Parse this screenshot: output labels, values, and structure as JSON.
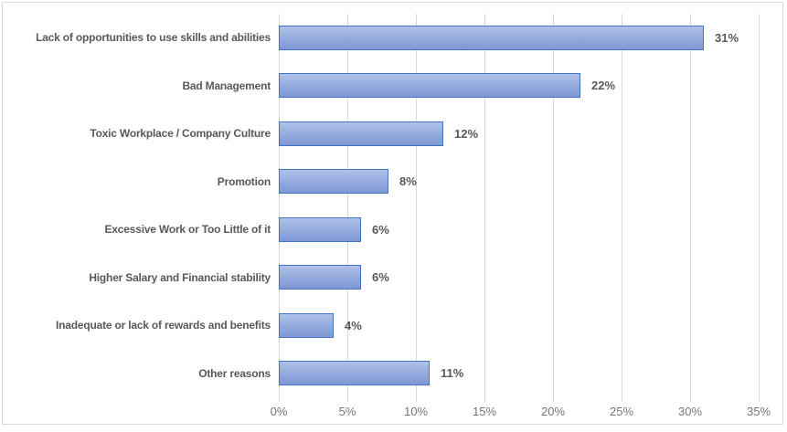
{
  "chart_data": {
    "type": "bar",
    "orientation": "horizontal",
    "title": "",
    "xlabel": "",
    "ylabel": "",
    "categories": [
      "Lack of opportunities to use skills and abilities",
      "Bad Management",
      "Toxic Workplace / Company Culture",
      "Promotion",
      "Excessive Work or Too Little of it",
      "Higher Salary and Financial stability",
      "Inadequate or lack of rewards and benefits",
      "Other reasons"
    ],
    "values": [
      31,
      22,
      12,
      8,
      6,
      6,
      4,
      11
    ],
    "value_labels": [
      "31%",
      "22%",
      "12%",
      "8%",
      "6%",
      "6%",
      "4%",
      "11%"
    ],
    "xlim": [
      0,
      35
    ],
    "x_ticks": [
      "0%",
      "5%",
      "10%",
      "15%",
      "20%",
      "25%",
      "30%",
      "35%"
    ],
    "grid": true,
    "legend": "none",
    "colors": {
      "bar_fill_top": "#b0c1e8",
      "bar_fill_bottom": "#8097d4",
      "bar_border": "#4472c4",
      "gridline": "#d9d9d9",
      "chart_border": "#d9d9d9",
      "category_label": "#595959",
      "value_label": "#595959",
      "axis_label": "#757575",
      "background": "#ffffff"
    }
  }
}
